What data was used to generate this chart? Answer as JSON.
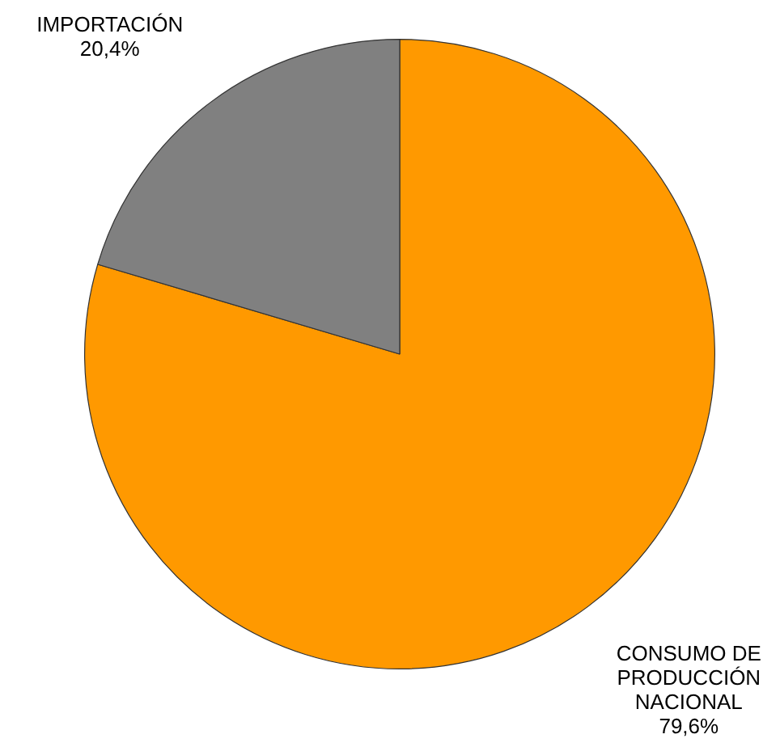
{
  "chart_data": {
    "type": "pie",
    "categories": [
      "CONSUMO DE PRODUCCIÓN NACIONAL",
      "IMPORTACIÓN"
    ],
    "values": [
      79.6,
      20.4
    ],
    "colors": [
      "#ff9900",
      "#808080"
    ],
    "value_labels": [
      "79,6%",
      "20,4%"
    ],
    "legend": false
  }
}
